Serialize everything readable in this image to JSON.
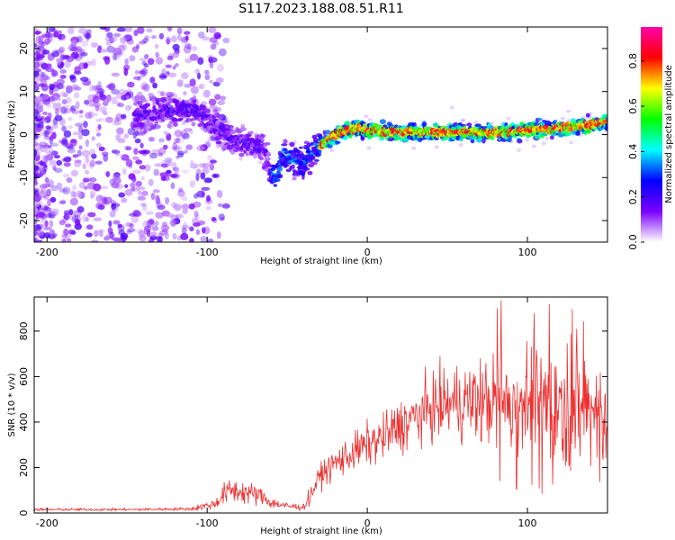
{
  "figure": {
    "title": "S117.2023.188.08.51.R11"
  },
  "chart_data": [
    {
      "type": "heatmap",
      "xlabel": "Height of straight line (km)",
      "ylabel": "Frequency (Hz)",
      "xlim": [
        -208,
        150
      ],
      "ylim": [
        -25,
        25
      ],
      "xticks": [
        -200,
        -100,
        0,
        100
      ],
      "yticks": [
        -20,
        -10,
        0,
        10,
        20
      ],
      "colorbar": {
        "label": "Normalized spectral amplitude",
        "range": [
          0.0,
          0.95
        ],
        "ticks": [
          "0.0",
          "0.2",
          "0.4",
          "0.6",
          "0.8"
        ],
        "colormap": [
          "#ffffff",
          "#7a00ff",
          "#0000ff",
          "#00ffff",
          "#00ff00",
          "#ffff00",
          "#ff0000",
          "#ff00aa"
        ]
      },
      "ridge": {
        "x": [
          -140,
          -120,
          -105,
          -95,
          -85,
          -75,
          -65,
          -58,
          -52,
          -46,
          -40,
          -34,
          -28,
          -20,
          -12,
          -5,
          0,
          20,
          40,
          60,
          80,
          100,
          120,
          135,
          150
        ],
        "frequency": [
          5,
          6,
          5,
          2,
          -1,
          -2,
          -3,
          -11,
          -4,
          -6,
          -7,
          -4,
          -2,
          0,
          1,
          1.5,
          1,
          0.5,
          0.5,
          0.5,
          0.5,
          1,
          1.5,
          2,
          3
        ]
      }
    },
    {
      "type": "line",
      "xlabel": "Height of straight line (km)",
      "ylabel": "SNR (10 * v/v)",
      "xlim": [
        -208,
        150
      ],
      "ylim": [
        0,
        950
      ],
      "xticks": [
        -200,
        -100,
        0,
        100
      ],
      "yticks": [
        0,
        200,
        400,
        600,
        800
      ],
      "color": "#ee3030",
      "envelope": {
        "x": [
          -208,
          -150,
          -110,
          -95,
          -90,
          -85,
          -75,
          -65,
          -60,
          -50,
          -40,
          -35,
          -30,
          -20,
          -10,
          0,
          10,
          20,
          30,
          40,
          50,
          60,
          70,
          80,
          90,
          100,
          110,
          120,
          130,
          140,
          150
        ],
        "values": [
          15,
          15,
          18,
          40,
          80,
          100,
          90,
          70,
          45,
          30,
          25,
          80,
          160,
          220,
          260,
          300,
          330,
          380,
          420,
          460,
          480,
          490,
          490,
          490,
          490,
          500,
          490,
          480,
          470,
          460,
          450
        ]
      }
    }
  ]
}
